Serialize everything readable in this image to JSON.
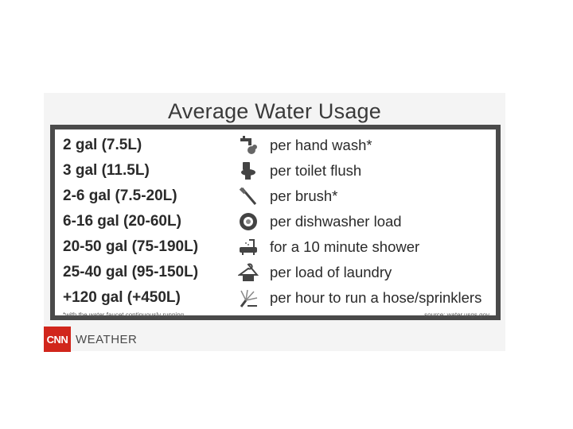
{
  "title": "Average Water Usage",
  "rows": [
    {
      "amount": "2 gal (7.5L)",
      "description": "per hand wash*",
      "icon": "faucet-icon"
    },
    {
      "amount": "3 gal (11.5L)",
      "description": "per toilet flush",
      "icon": "toilet-icon"
    },
    {
      "amount": "2-6 gal (7.5-20L)",
      "description": "per brush*",
      "icon": "toothbrush-icon"
    },
    {
      "amount": "6-16 gal (20-60L)",
      "description": "per dishwasher load",
      "icon": "dishwasher-icon"
    },
    {
      "amount": "20-50 gal (75-190L)",
      "description": "for a 10 minute shower",
      "icon": "bathtub-shower-icon"
    },
    {
      "amount": "25-40 gal (95-150L)",
      "description": "per load of laundry",
      "icon": "laundry-hanger-icon"
    },
    {
      "amount": "+120 gal (+450L)",
      "description": "per hour to run a hose/sprinklers",
      "icon": "sprinkler-icon"
    }
  ],
  "footnote": "*with the water faucet continuously running",
  "source": "source: water.usgs.gov",
  "brand": {
    "logo": "CNN",
    "label": "WEATHER",
    "logo_color": "#d1261c"
  }
}
